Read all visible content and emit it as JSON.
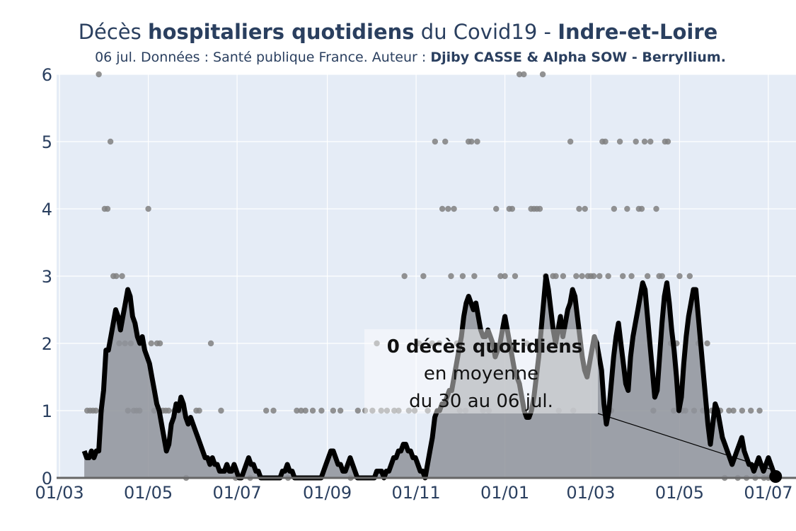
{
  "title": {
    "part1": "Décès ",
    "part2": "hospitaliers quotidiens",
    "part3": " du Covid19 - ",
    "part4": "Indre-et-Loire"
  },
  "subtitle": {
    "part1": "06 jul. Données : Santé publique France. Auteur : ",
    "part2": "Djiby CASSE & Alpha SOW - Berryllium."
  },
  "annotation": {
    "line1": "0 décès quotidiens",
    "line2": "en moyenne",
    "line3": "du 30 au 06 jul."
  },
  "colors": {
    "plot_bg": "#e5ecf6",
    "grid": "#ffffff",
    "line": "#000000",
    "fill": "#8f939a",
    "dots": "#808080",
    "text": "#2a3f5f"
  },
  "chart_data": {
    "type": "line",
    "x_start": "2020-03-18",
    "x_end": "2021-07-06",
    "xlim": [
      "2020-02-28",
      "2021-07-20"
    ],
    "ylim": [
      0,
      6
    ],
    "yticks": [
      0,
      1,
      2,
      3,
      4,
      5,
      6
    ],
    "xtick_dates": [
      "2020-03-01",
      "2020-05-01",
      "2020-07-01",
      "2020-09-01",
      "2020-11-01",
      "2021-01-01",
      "2021-03-01",
      "2021-05-01",
      "2021-07-01"
    ],
    "xtick_labels": [
      "01/03",
      "01/05",
      "01/07",
      "01/09",
      "01/11",
      "01/01",
      "01/03",
      "01/05",
      "01/07"
    ],
    "grid": true,
    "legend": "none",
    "series": [
      {
        "kind": "rolling_mean_line_fill",
        "values": [
          0.4,
          0.3,
          0.3,
          0.4,
          0.3,
          0.4,
          0.4,
          1.0,
          1.3,
          1.9,
          1.9,
          2.1,
          2.3,
          2.5,
          2.4,
          2.2,
          2.4,
          2.6,
          2.8,
          2.7,
          2.4,
          2.3,
          2.1,
          2.0,
          2.1,
          1.9,
          1.8,
          1.7,
          1.5,
          1.3,
          1.1,
          1.0,
          0.8,
          0.6,
          0.4,
          0.5,
          0.8,
          0.9,
          1.1,
          1.0,
          1.2,
          1.1,
          0.9,
          0.8,
          0.9,
          0.8,
          0.7,
          0.6,
          0.5,
          0.4,
          0.3,
          0.3,
          0.2,
          0.3,
          0.2,
          0.2,
          0.1,
          0.1,
          0.1,
          0.2,
          0.1,
          0.1,
          0.2,
          0.1,
          0.0,
          0.0,
          0.1,
          0.2,
          0.3,
          0.2,
          0.2,
          0.1,
          0.1,
          0.0,
          0.0,
          0.0,
          0.0,
          0.0,
          0.0,
          0.0,
          0.0,
          0.0,
          0.1,
          0.1,
          0.2,
          0.1,
          0.1,
          0.0,
          0.0,
          0.0,
          0.0,
          0.0,
          0.0,
          0.0,
          0.0,
          0.0,
          0.0,
          0.0,
          0.0,
          0.1,
          0.2,
          0.3,
          0.4,
          0.4,
          0.3,
          0.2,
          0.2,
          0.1,
          0.1,
          0.2,
          0.3,
          0.2,
          0.1,
          0.0,
          0.0,
          0.0,
          0.0,
          0.0,
          0.0,
          0.0,
          0.0,
          0.1,
          0.1,
          0.1,
          0.0,
          0.1,
          0.1,
          0.2,
          0.3,
          0.3,
          0.4,
          0.4,
          0.5,
          0.5,
          0.4,
          0.4,
          0.3,
          0.3,
          0.2,
          0.1,
          0.1,
          0.0,
          0.2,
          0.4,
          0.6,
          0.9,
          1.0,
          1.0,
          1.1,
          1.1,
          1.2,
          1.3,
          1.3,
          1.5,
          1.7,
          1.9,
          2.1,
          2.4,
          2.6,
          2.7,
          2.6,
          2.5,
          2.6,
          2.4,
          2.2,
          2.1,
          2.1,
          2.2,
          2.1,
          2.0,
          1.8,
          1.9,
          2.0,
          2.2,
          2.4,
          2.2,
          2.0,
          1.8,
          1.6,
          1.5,
          1.4,
          1.2,
          1.0,
          0.9,
          0.9,
          1.0,
          1.2,
          1.5,
          1.8,
          2.2,
          2.6,
          3.0,
          2.8,
          2.5,
          2.2,
          2.0,
          2.2,
          2.4,
          2.1,
          2.3,
          2.5,
          2.6,
          2.8,
          2.7,
          2.4,
          2.1,
          1.8,
          1.6,
          1.5,
          1.7,
          1.9,
          2.1,
          2.0,
          1.8,
          1.6,
          1.1,
          0.8,
          1.0,
          1.4,
          1.8,
          2.1,
          2.3,
          2.0,
          1.7,
          1.4,
          1.3,
          1.8,
          2.1,
          2.3,
          2.5,
          2.7,
          2.9,
          2.8,
          2.4,
          2.0,
          1.6,
          1.2,
          1.3,
          1.8,
          2.3,
          2.7,
          2.9,
          2.6,
          2.2,
          1.9,
          1.5,
          1.0,
          1.2,
          1.7,
          2.1,
          2.4,
          2.6,
          2.8,
          2.8,
          2.4,
          2.0,
          1.6,
          1.2,
          0.8,
          0.5,
          0.8,
          1.1,
          1.0,
          0.8,
          0.6,
          0.5,
          0.4,
          0.3,
          0.2,
          0.3,
          0.4,
          0.5,
          0.6,
          0.4,
          0.3,
          0.2,
          0.2,
          0.1,
          0.2,
          0.3,
          0.2,
          0.1,
          0.2,
          0.3,
          0.2,
          0.1,
          0.0
        ]
      },
      {
        "kind": "daily_dots",
        "points": [
          [
            "2020-03-20",
            1
          ],
          [
            "2020-03-22",
            1
          ],
          [
            "2020-03-24",
            1
          ],
          [
            "2020-03-26",
            1
          ],
          [
            "2020-03-28",
            6
          ],
          [
            "2020-03-30",
            1
          ],
          [
            "2020-04-01",
            4
          ],
          [
            "2020-04-03",
            4
          ],
          [
            "2020-04-05",
            5
          ],
          [
            "2020-04-07",
            3
          ],
          [
            "2020-04-09",
            3
          ],
          [
            "2020-04-11",
            2
          ],
          [
            "2020-04-13",
            3
          ],
          [
            "2020-04-15",
            2
          ],
          [
            "2020-04-17",
            1
          ],
          [
            "2020-04-19",
            2
          ],
          [
            "2020-04-21",
            1
          ],
          [
            "2020-04-23",
            1
          ],
          [
            "2020-04-25",
            1
          ],
          [
            "2020-04-27",
            2
          ],
          [
            "2020-05-01",
            4
          ],
          [
            "2020-05-03",
            2
          ],
          [
            "2020-05-05",
            1
          ],
          [
            "2020-05-07",
            2
          ],
          [
            "2020-05-09",
            2
          ],
          [
            "2020-05-11",
            1
          ],
          [
            "2020-05-13",
            1
          ],
          [
            "2020-05-15",
            1
          ],
          [
            "2020-05-19",
            1
          ],
          [
            "2020-05-23",
            1
          ],
          [
            "2020-05-27",
            0
          ],
          [
            "2020-06-03",
            1
          ],
          [
            "2020-06-05",
            1
          ],
          [
            "2020-06-13",
            2
          ],
          [
            "2020-06-20",
            1
          ],
          [
            "2020-06-30",
            0
          ],
          [
            "2020-07-10",
            0
          ],
          [
            "2020-07-21",
            1
          ],
          [
            "2020-07-26",
            1
          ],
          [
            "2020-08-05",
            0
          ],
          [
            "2020-08-11",
            1
          ],
          [
            "2020-08-14",
            1
          ],
          [
            "2020-08-17",
            1
          ],
          [
            "2020-08-22",
            1
          ],
          [
            "2020-08-28",
            1
          ],
          [
            "2020-09-05",
            1
          ],
          [
            "2020-09-10",
            1
          ],
          [
            "2020-09-17",
            0
          ],
          [
            "2020-09-22",
            1
          ],
          [
            "2020-09-27",
            1
          ],
          [
            "2020-10-02",
            1
          ],
          [
            "2020-10-05",
            2
          ],
          [
            "2020-10-08",
            1
          ],
          [
            "2020-10-12",
            1
          ],
          [
            "2020-10-17",
            1
          ],
          [
            "2020-10-20",
            1
          ],
          [
            "2020-10-24",
            3
          ],
          [
            "2020-10-27",
            1
          ],
          [
            "2020-10-31",
            1
          ],
          [
            "2020-11-03",
            2
          ],
          [
            "2020-11-06",
            3
          ],
          [
            "2020-11-09",
            1
          ],
          [
            "2020-11-12",
            2
          ],
          [
            "2020-11-14",
            5
          ],
          [
            "2020-11-17",
            2
          ],
          [
            "2020-11-19",
            4
          ],
          [
            "2020-11-21",
            5
          ],
          [
            "2020-11-23",
            4
          ],
          [
            "2020-11-25",
            3
          ],
          [
            "2020-11-27",
            4
          ],
          [
            "2020-11-29",
            2
          ],
          [
            "2020-12-01",
            1
          ],
          [
            "2020-12-03",
            3
          ],
          [
            "2020-12-05",
            1
          ],
          [
            "2020-12-07",
            5
          ],
          [
            "2020-12-09",
            5
          ],
          [
            "2020-12-11",
            3
          ],
          [
            "2020-12-13",
            5
          ],
          [
            "2020-12-15",
            2
          ],
          [
            "2020-12-17",
            1
          ],
          [
            "2020-12-19",
            2
          ],
          [
            "2020-12-21",
            1
          ],
          [
            "2020-12-23",
            2
          ],
          [
            "2020-12-26",
            4
          ],
          [
            "2020-12-29",
            3
          ],
          [
            "2021-01-01",
            3
          ],
          [
            "2021-01-04",
            4
          ],
          [
            "2021-01-06",
            4
          ],
          [
            "2021-01-08",
            3
          ],
          [
            "2021-01-11",
            6
          ],
          [
            "2021-01-14",
            6
          ],
          [
            "2021-01-16",
            2
          ],
          [
            "2021-01-19",
            4
          ],
          [
            "2021-01-21",
            4
          ],
          [
            "2021-01-23",
            4
          ],
          [
            "2021-01-25",
            4
          ],
          [
            "2021-01-27",
            6
          ],
          [
            "2021-01-29",
            3
          ],
          [
            "2021-02-01",
            2
          ],
          [
            "2021-02-03",
            3
          ],
          [
            "2021-02-05",
            3
          ],
          [
            "2021-02-07",
            1
          ],
          [
            "2021-02-10",
            3
          ],
          [
            "2021-02-13",
            2
          ],
          [
            "2021-02-15",
            5
          ],
          [
            "2021-02-17",
            1
          ],
          [
            "2021-02-19",
            3
          ],
          [
            "2021-02-21",
            4
          ],
          [
            "2021-02-23",
            3
          ],
          [
            "2021-02-25",
            4
          ],
          [
            "2021-02-27",
            3
          ],
          [
            "2021-03-01",
            3
          ],
          [
            "2021-03-03",
            3
          ],
          [
            "2021-03-05",
            2
          ],
          [
            "2021-03-07",
            3
          ],
          [
            "2021-03-09",
            5
          ],
          [
            "2021-03-11",
            5
          ],
          [
            "2021-03-13",
            3
          ],
          [
            "2021-03-15",
            1
          ],
          [
            "2021-03-17",
            4
          ],
          [
            "2021-03-19",
            2
          ],
          [
            "2021-03-21",
            5
          ],
          [
            "2021-03-23",
            3
          ],
          [
            "2021-03-26",
            4
          ],
          [
            "2021-03-29",
            3
          ],
          [
            "2021-04-01",
            5
          ],
          [
            "2021-04-03",
            4
          ],
          [
            "2021-04-05",
            4
          ],
          [
            "2021-04-07",
            5
          ],
          [
            "2021-04-09",
            3
          ],
          [
            "2021-04-11",
            5
          ],
          [
            "2021-04-13",
            1
          ],
          [
            "2021-04-15",
            4
          ],
          [
            "2021-04-17",
            3
          ],
          [
            "2021-04-19",
            3
          ],
          [
            "2021-04-21",
            5
          ],
          [
            "2021-04-23",
            5
          ],
          [
            "2021-04-25",
            2
          ],
          [
            "2021-04-27",
            1
          ],
          [
            "2021-04-29",
            2
          ],
          [
            "2021-05-01",
            3
          ],
          [
            "2021-05-03",
            1
          ],
          [
            "2021-05-05",
            1
          ],
          [
            "2021-05-08",
            3
          ],
          [
            "2021-05-11",
            1
          ],
          [
            "2021-05-14",
            2
          ],
          [
            "2021-05-17",
            1
          ],
          [
            "2021-05-20",
            2
          ],
          [
            "2021-05-23",
            1
          ],
          [
            "2021-05-26",
            1
          ],
          [
            "2021-05-29",
            1
          ],
          [
            "2021-06-01",
            0
          ],
          [
            "2021-06-04",
            1
          ],
          [
            "2021-06-07",
            1
          ],
          [
            "2021-06-10",
            0
          ],
          [
            "2021-06-13",
            1
          ],
          [
            "2021-06-16",
            0
          ],
          [
            "2021-06-19",
            1
          ],
          [
            "2021-06-22",
            0
          ],
          [
            "2021-06-25",
            1
          ],
          [
            "2021-06-28",
            0
          ],
          [
            "2021-07-01",
            0
          ],
          [
            "2021-07-04",
            0
          ]
        ]
      }
    ],
    "highlight_point": {
      "x": "2021-07-06",
      "y": 0
    }
  }
}
